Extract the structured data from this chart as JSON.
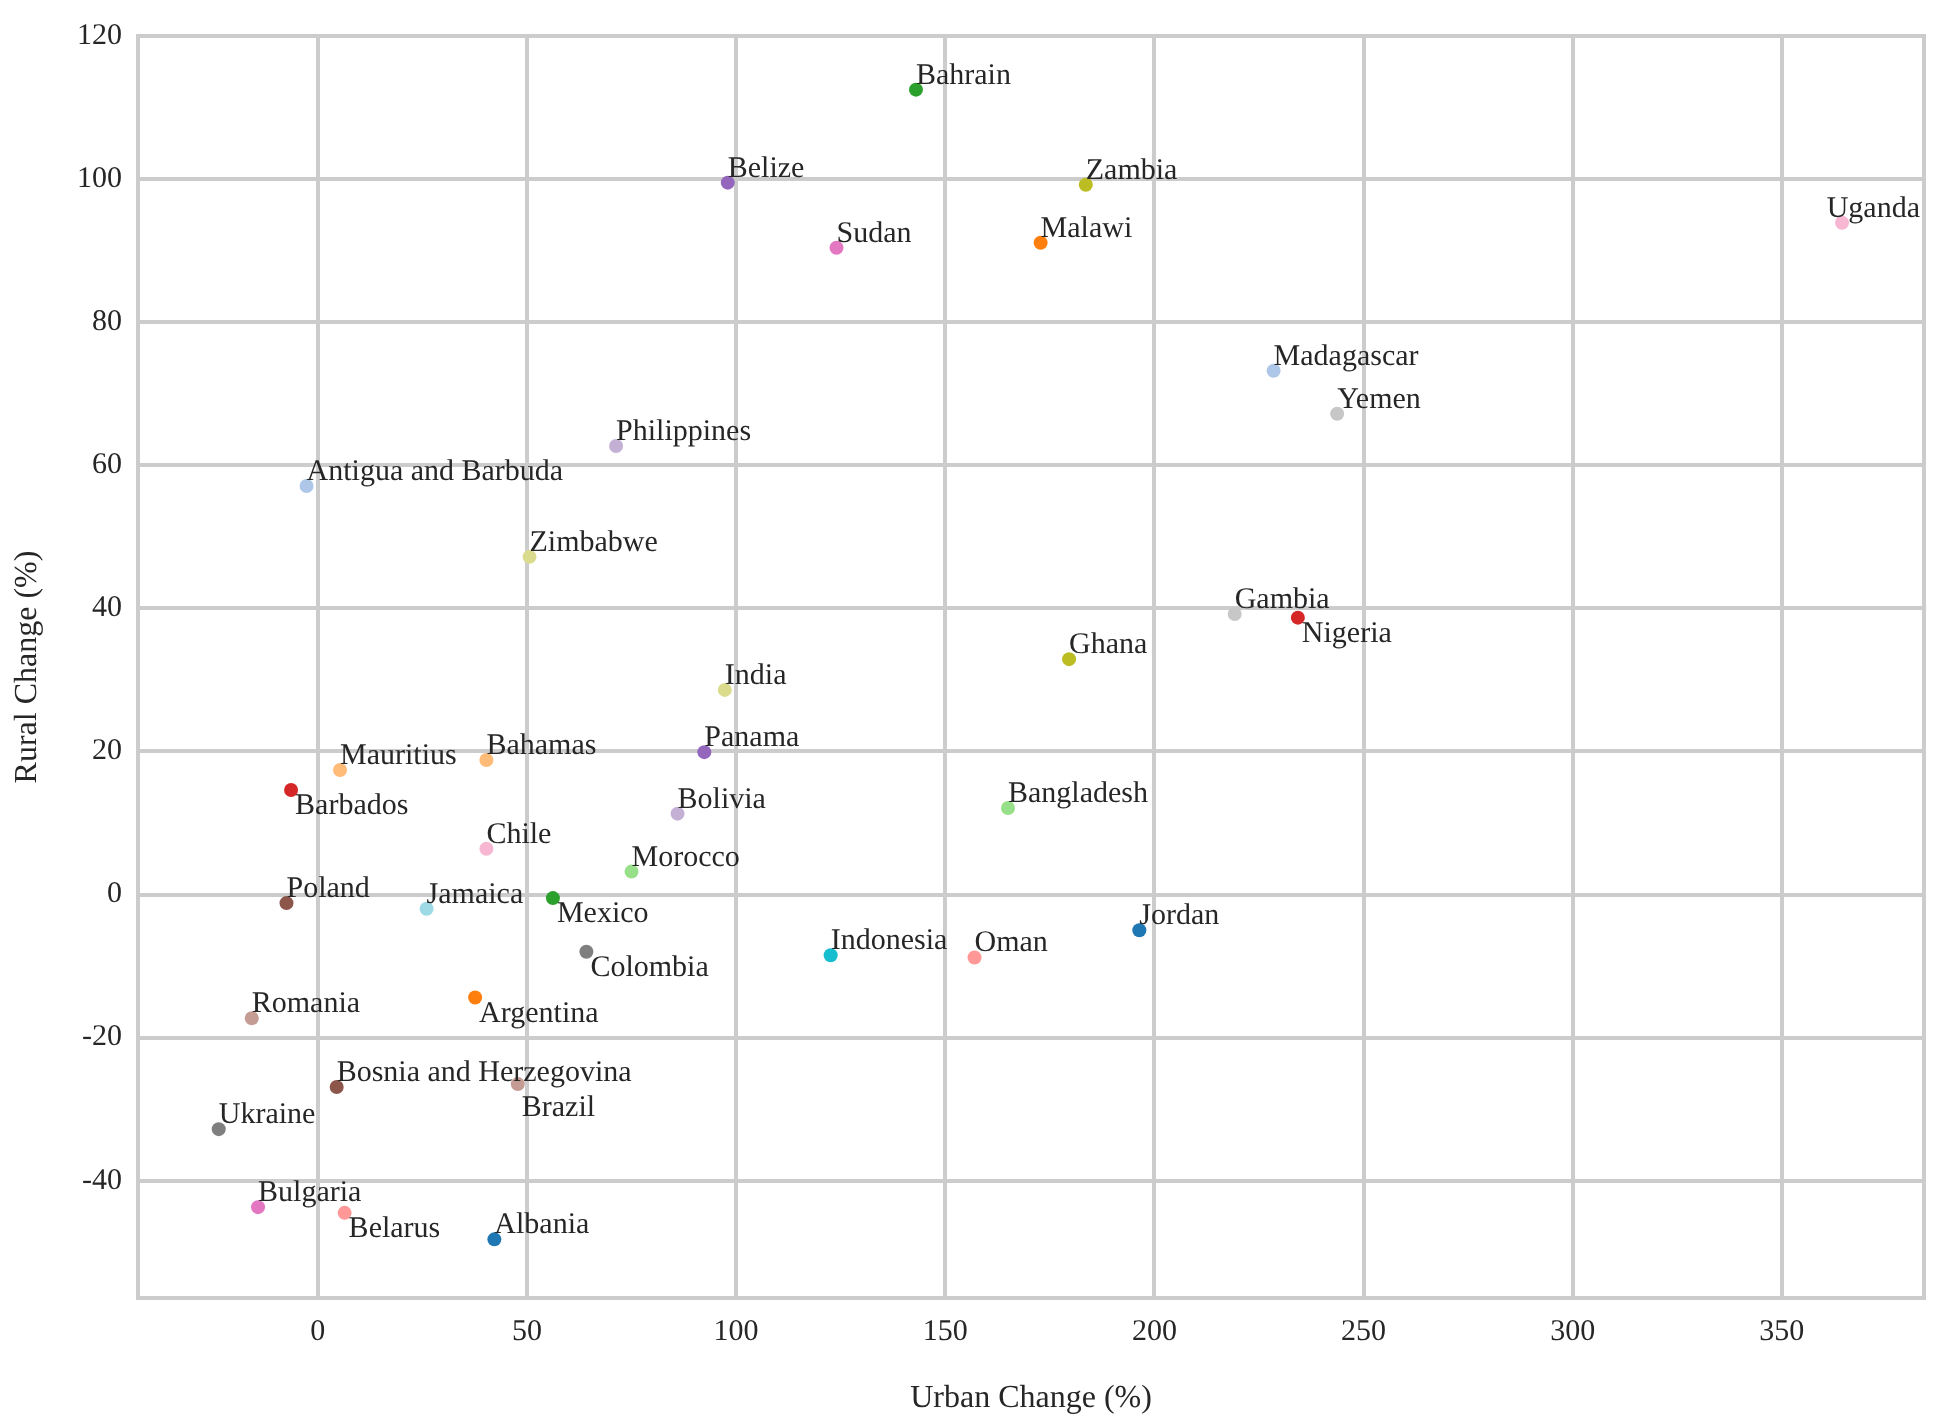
{
  "chart_data": {
    "type": "scatter",
    "xlabel": "Urban Change (%)",
    "ylabel": "Rural Change (%)",
    "xlim": [
      -43,
      384
    ],
    "ylim": [
      -56.4,
      120
    ],
    "xticks": [
      0,
      50,
      100,
      150,
      200,
      250,
      300,
      350
    ],
    "yticks": [
      -40,
      -20,
      0,
      20,
      40,
      60,
      80,
      100,
      120
    ],
    "grid": true,
    "legend": false,
    "marker": "circle",
    "series": [
      {
        "name": "Bahrain",
        "color": "#2ca02c",
        "x": [
          143
        ],
        "values": [
          112.5
        ]
      },
      {
        "name": "Belize",
        "color": "#9467bd",
        "x": [
          98
        ],
        "values": [
          99.5
        ]
      },
      {
        "name": "Zambia",
        "color": "#bcbd22",
        "x": [
          183.6
        ],
        "values": [
          99.2
        ]
      },
      {
        "name": "Uganda",
        "color": "#f7b6d2",
        "x": [
          364.4
        ],
        "values": [
          93.9
        ]
      },
      {
        "name": "Malawi",
        "color": "#ff7f0e",
        "x": [
          172.8
        ],
        "values": [
          91.1
        ]
      },
      {
        "name": "Sudan",
        "color": "#e377c2",
        "x": [
          124
        ],
        "values": [
          90.4
        ]
      },
      {
        "name": "Madagascar",
        "color": "#aec7e8",
        "x": [
          228.5
        ],
        "values": [
          73.2
        ]
      },
      {
        "name": "Yemen",
        "color": "#c7c7c7",
        "x": [
          243.7
        ],
        "values": [
          67.2
        ]
      },
      {
        "name": "Philippines",
        "color": "#c5b0d5",
        "x": [
          71.3
        ],
        "values": [
          62.7
        ]
      },
      {
        "name": "Antigua and Barbuda",
        "color": "#aec7e8",
        "x": [
          -2.7
        ],
        "values": [
          57.1
        ]
      },
      {
        "name": "Zimbabwe",
        "color": "#dbdb8d",
        "x": [
          50.6
        ],
        "values": [
          47.2
        ]
      },
      {
        "name": "Gambia",
        "color": "#c7c7c7",
        "x": [
          219.2
        ],
        "values": [
          39.2
        ]
      },
      {
        "name": "Nigeria",
        "color": "#d62728",
        "x": [
          234.3
        ],
        "values": [
          38.7
        ]
      },
      {
        "name": "Ghana",
        "color": "#bcbd22",
        "x": [
          179.6
        ],
        "values": [
          32.9
        ]
      },
      {
        "name": "India",
        "color": "#dbdb8d",
        "x": [
          97.3
        ],
        "values": [
          28.6
        ]
      },
      {
        "name": "Panama",
        "color": "#9467bd",
        "x": [
          92.4
        ],
        "values": [
          19.9
        ]
      },
      {
        "name": "Bahamas",
        "color": "#ffbb78",
        "x": [
          40.3
        ],
        "values": [
          18.8
        ]
      },
      {
        "name": "Mauritius",
        "color": "#ffbb78",
        "x": [
          5.3
        ],
        "values": [
          17.4
        ]
      },
      {
        "name": "Barbados",
        "color": "#d62728",
        "x": [
          -6.4
        ],
        "values": [
          14.6
        ]
      },
      {
        "name": "Bangladesh",
        "color": "#98df8a",
        "x": [
          165
        ],
        "values": [
          12.1
        ]
      },
      {
        "name": "Bolivia",
        "color": "#c5b0d5",
        "x": [
          86
        ],
        "values": [
          11.3
        ]
      },
      {
        "name": "Chile",
        "color": "#f7b6d2",
        "x": [
          40.3
        ],
        "values": [
          6.4
        ]
      },
      {
        "name": "Morocco",
        "color": "#98df8a",
        "x": [
          75
        ],
        "values": [
          3.2
        ]
      },
      {
        "name": "Mexico",
        "color": "#2ca02c",
        "x": [
          56.2
        ],
        "values": [
          -0.5
        ]
      },
      {
        "name": "Poland",
        "color": "#8c564b",
        "x": [
          -7.5
        ],
        "values": [
          -1.2
        ]
      },
      {
        "name": "Jamaica",
        "color": "#9edae5",
        "x": [
          26
        ],
        "values": [
          -2
        ]
      },
      {
        "name": "Jordan",
        "color": "#1f77b4",
        "x": [
          196.4
        ],
        "values": [
          -5
        ]
      },
      {
        "name": "Colombia",
        "color": "#7f7f7f",
        "x": [
          64.2
        ],
        "values": [
          -8
        ]
      },
      {
        "name": "Indonesia",
        "color": "#17becf",
        "x": [
          122.6
        ],
        "values": [
          -8.5
        ]
      },
      {
        "name": "Oman",
        "color": "#ff9896",
        "x": [
          157
        ],
        "values": [
          -8.8
        ]
      },
      {
        "name": "Argentina",
        "color": "#ff7f0e",
        "x": [
          37.6
        ],
        "values": [
          -14.4
        ]
      },
      {
        "name": "Romania",
        "color": "#c49c94",
        "x": [
          -15.8
        ],
        "values": [
          -17.3
        ]
      },
      {
        "name": "Bosnia and Herzegovina",
        "color": "#8c564b",
        "x": [
          4.5
        ],
        "values": [
          -26.9
        ]
      },
      {
        "name": "Brazil",
        "color": "#c49c94",
        "x": [
          47.8
        ],
        "values": [
          -26.5
        ]
      },
      {
        "name": "Ukraine",
        "color": "#7f7f7f",
        "x": [
          -23.7
        ],
        "values": [
          -32.8
        ]
      },
      {
        "name": "Bulgaria",
        "color": "#e377c2",
        "x": [
          -14.3
        ],
        "values": [
          -43.7
        ]
      },
      {
        "name": "Belarus",
        "color": "#ff9896",
        "x": [
          6.4
        ],
        "values": [
          -44.5
        ]
      },
      {
        "name": "Albania",
        "color": "#1f77b4",
        "x": [
          42.2
        ],
        "values": [
          -48.2
        ]
      }
    ]
  }
}
